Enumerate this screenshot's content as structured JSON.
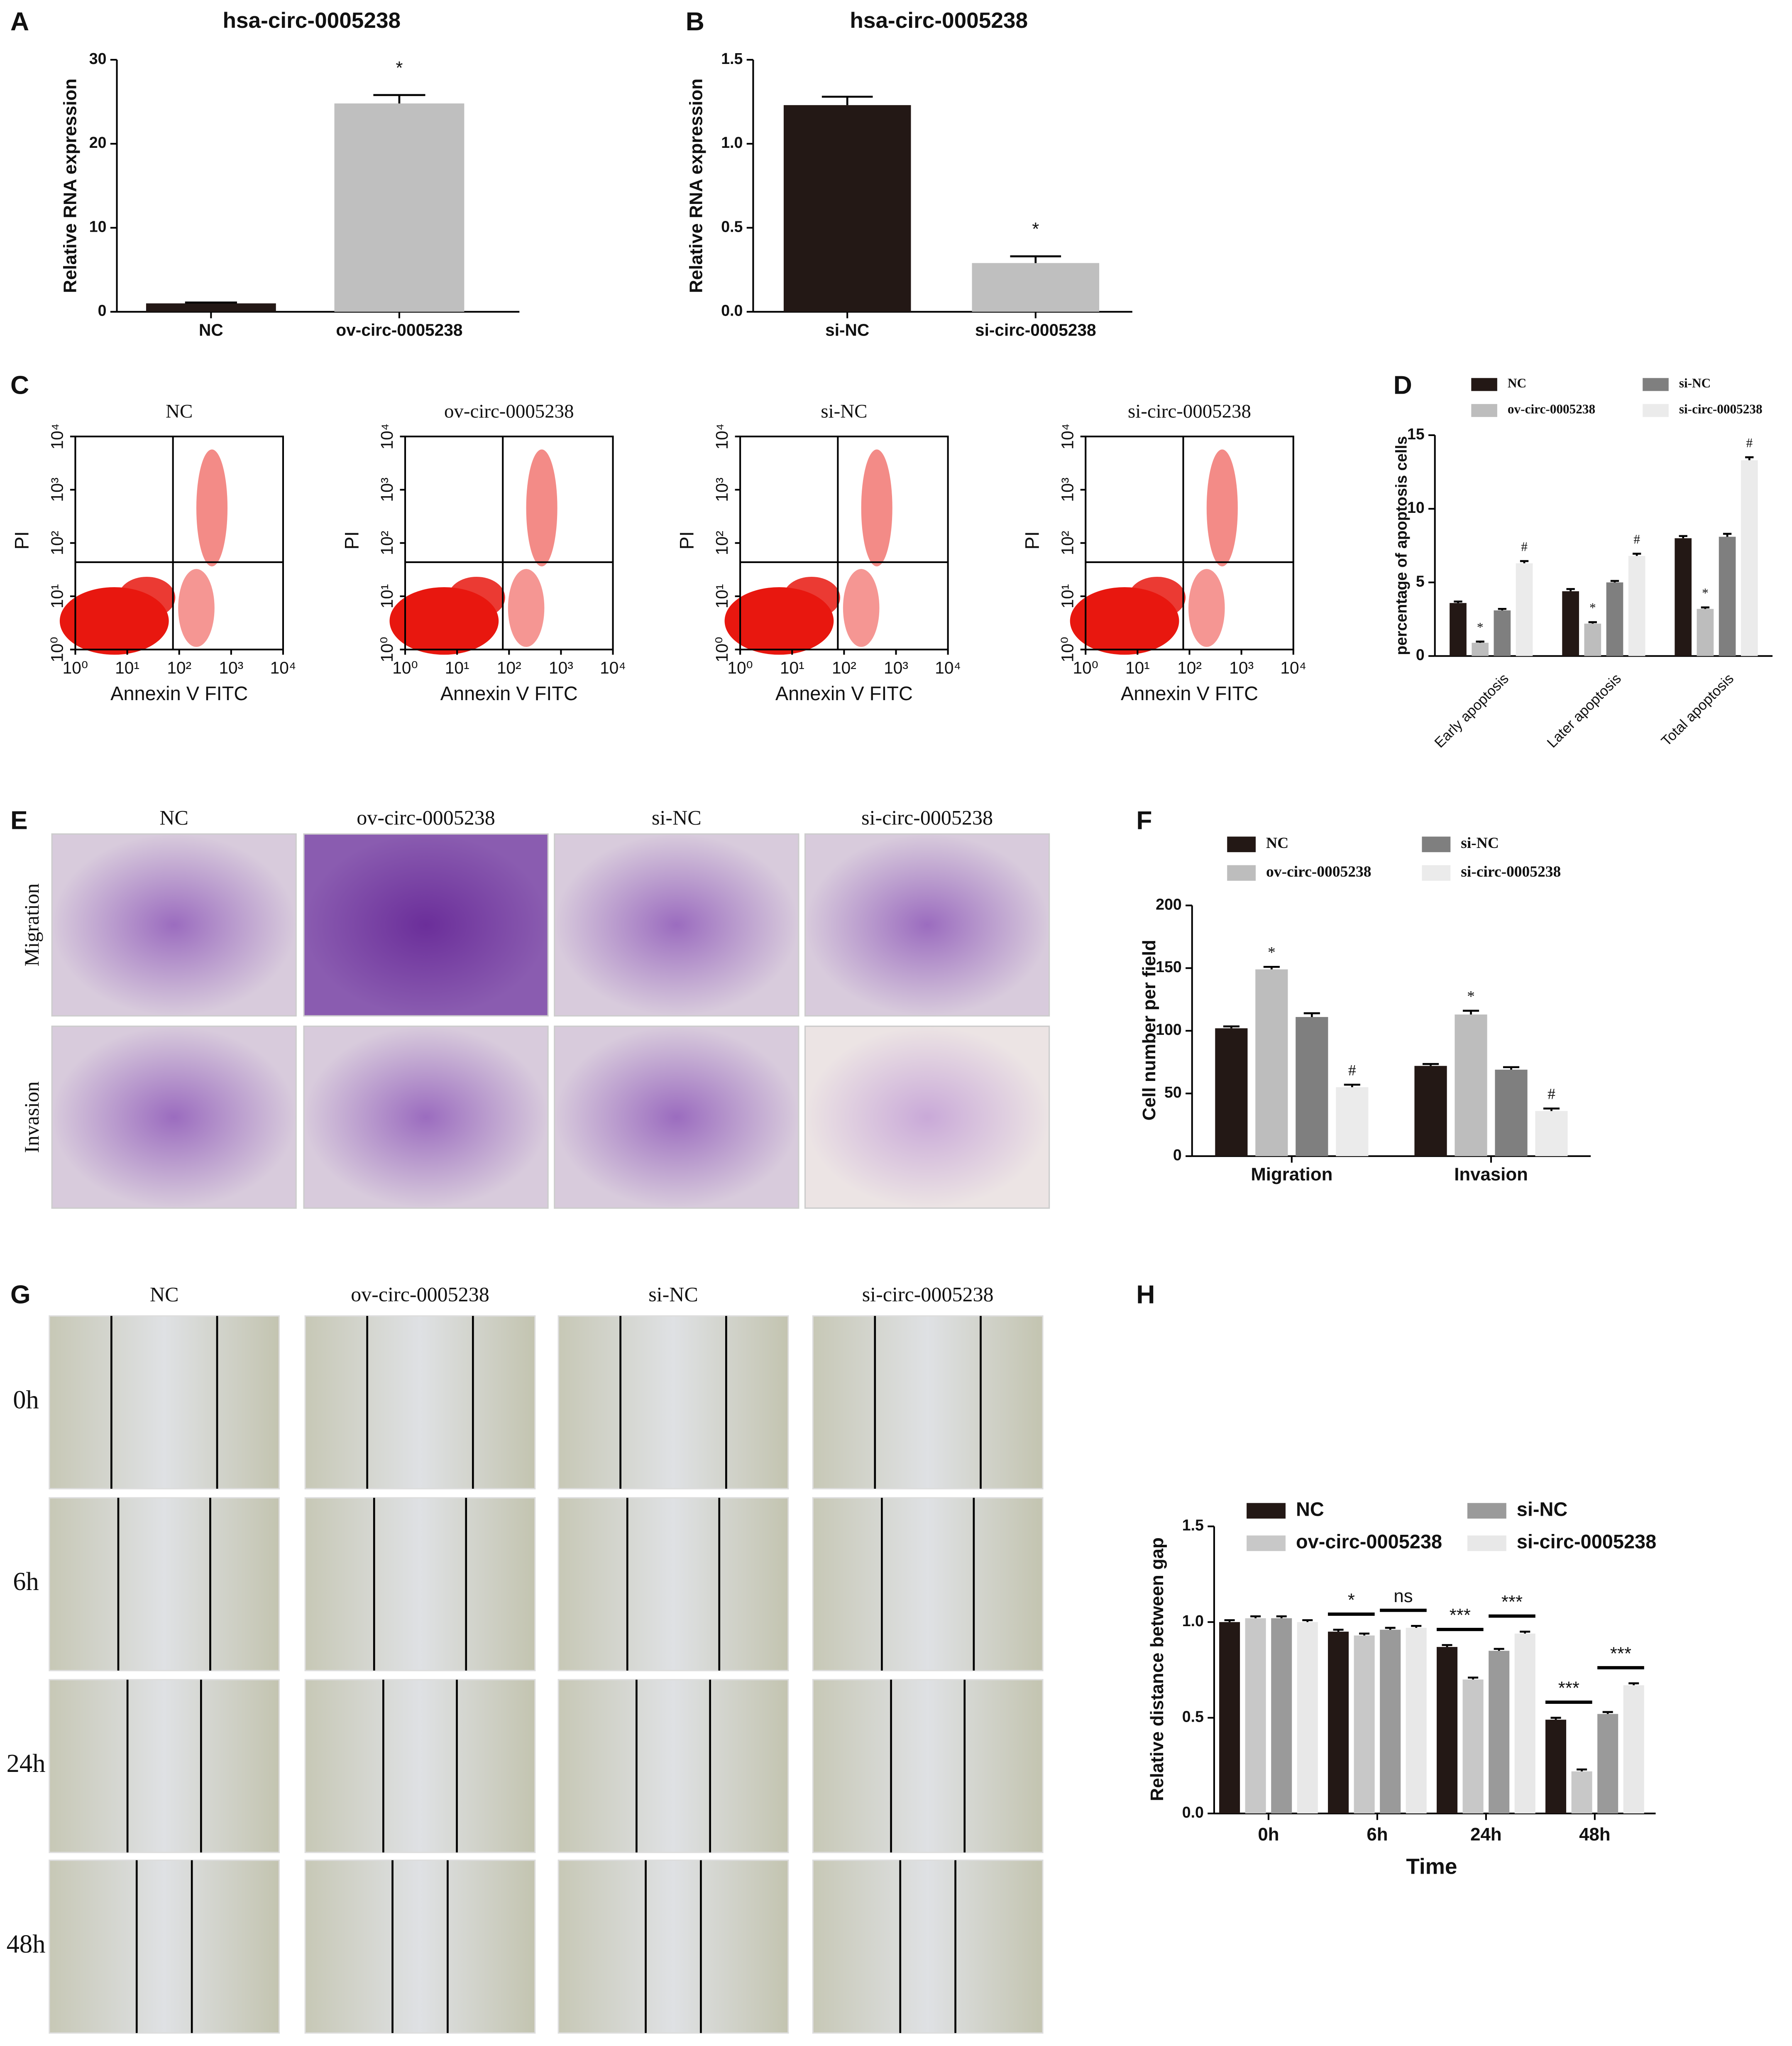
{
  "chart_data": [
    {
      "type": "bar",
      "panel": "A",
      "title": "hsa-circ-0005238",
      "y_label": "Relative RNA expression",
      "categories": [
        "NC",
        "ov-circ-0005238"
      ],
      "values": [
        1,
        24.8
      ],
      "errors": [
        0.1,
        1.0
      ],
      "colors": [
        "#231815",
        "#bfbfbf"
      ],
      "annotations": [
        null,
        "*"
      ],
      "ylim": [
        0,
        30
      ],
      "yticks": [
        0,
        10,
        20,
        30
      ]
    },
    {
      "type": "bar",
      "panel": "B",
      "title": "hsa-circ-0005238",
      "y_label": "Relative RNA expression",
      "categories": [
        "si-NC",
        "si-circ-0005238"
      ],
      "values": [
        1.23,
        0.29
      ],
      "errors": [
        0.05,
        0.04
      ],
      "colors": [
        "#231815",
        "#bfbfbf"
      ],
      "annotations": [
        null,
        "*"
      ],
      "ylim": [
        0,
        1.5
      ],
      "yticks": [
        {
          "value": 0,
          "label": "0.0"
        },
        {
          "value": 0.5,
          "label": "0.5"
        },
        {
          "value": 1,
          "label": "1.0"
        },
        {
          "value": 1.5,
          "label": "1.5"
        }
      ]
    },
    {
      "type": "flow",
      "panel": "C",
      "x_label": "Annexin V FITC",
      "y_label": "PI",
      "log": true,
      "plots": [
        "NC",
        "ov-circ-0005238",
        "si-NC",
        "si-circ-0005238"
      ],
      "color": "#e8170f",
      "xlim": [
        1,
        10000
      ],
      "ylim": [
        1,
        10000
      ],
      "xticks": [
        {
          "value": 1,
          "label": "10⁰"
        },
        {
          "value": 10,
          "label": "10¹"
        },
        {
          "value": 100,
          "label": "10²"
        },
        {
          "value": 1000,
          "label": "10³"
        },
        {
          "value": 10000,
          "label": "10⁴"
        }
      ],
      "yticks": [
        {
          "value": 1,
          "label": "10⁰"
        },
        {
          "value": 10,
          "label": "10¹"
        },
        {
          "value": 100,
          "label": "10²"
        },
        {
          "value": 1000,
          "label": "10³"
        },
        {
          "value": 10000,
          "label": "10⁴"
        }
      ]
    },
    {
      "type": "grouped-bar",
      "panel": "D",
      "y_label": "percentage of apoptosis cells",
      "categories": [
        "Early apoptosis",
        "Later apoptosis",
        "Total apoptosis"
      ],
      "series": [
        {
          "name": "NC",
          "color": "#231815",
          "values": [
            3.6,
            4.4,
            8.0
          ],
          "errors": [
            0.1,
            0.15,
            0.15
          ],
          "annotations": [
            null,
            null,
            null
          ]
        },
        {
          "name": "ov-circ-0005238",
          "color": "#bdbdbd",
          "values": [
            0.9,
            2.2,
            3.2
          ],
          "errors": [
            0.08,
            0.1,
            0.1
          ],
          "annotations": [
            "*",
            "*",
            "*"
          ]
        },
        {
          "name": "si-NC",
          "color": "#7f7f7f",
          "values": [
            3.1,
            5.0,
            8.1
          ],
          "errors": [
            0.1,
            0.1,
            0.2
          ],
          "annotations": [
            null,
            null,
            null
          ]
        },
        {
          "name": "si-circ-0005238",
          "color": "#ebebeb",
          "values": [
            6.3,
            6.8,
            13.3
          ],
          "errors": [
            0.15,
            0.15,
            0.2
          ],
          "annotations": [
            "#",
            "#",
            "#"
          ]
        }
      ],
      "ylim": [
        0,
        15
      ],
      "yticks": [
        0,
        5,
        10,
        15
      ]
    },
    {
      "type": "micrograph",
      "panel": "E",
      "columns": [
        "NC",
        "ov-circ-0005238",
        "si-NC",
        "si-circ-0005238"
      ],
      "rows": [
        "Migration",
        "Invasion"
      ]
    },
    {
      "type": "grouped-bar",
      "panel": "F",
      "y_label": "Cell number per field",
      "categories": [
        "Migration",
        "Invasion"
      ],
      "series": [
        {
          "name": "NC",
          "color": "#231815",
          "values": [
            102,
            72
          ],
          "errors": [
            1.5,
            1.5
          ],
          "annotations": [
            null,
            null
          ]
        },
        {
          "name": "ov-circ-0005238",
          "color": "#bdbdbd",
          "values": [
            149,
            113
          ],
          "errors": [
            2,
            3
          ],
          "annotations": [
            "*",
            "*"
          ]
        },
        {
          "name": "si-NC",
          "color": "#7f7f7f",
          "values": [
            111,
            69
          ],
          "errors": [
            3,
            2
          ],
          "annotations": [
            null,
            null
          ]
        },
        {
          "name": "si-circ-0005238",
          "color": "#ebebeb",
          "values": [
            55,
            36
          ],
          "errors": [
            2,
            2
          ],
          "annotations": [
            "#",
            "#"
          ]
        }
      ],
      "ylim": [
        0,
        200
      ],
      "yticks": [
        0,
        50,
        100,
        150,
        200
      ]
    },
    {
      "type": "micrograph",
      "panel": "G",
      "columns": [
        "NC",
        "ov-circ-0005238",
        "si-NC",
        "si-circ-0005238"
      ],
      "rows": [
        "0h",
        "6h",
        "24h",
        "48h"
      ]
    },
    {
      "type": "grouped-bar",
      "panel": "H",
      "y_label": "Relative distance between gap",
      "x_label": "Time",
      "categories": [
        "0h",
        "6h",
        "24h",
        "48h"
      ],
      "series": [
        {
          "name": "NC",
          "color": "#231815",
          "values": [
            1.0,
            0.95,
            0.87,
            0.49
          ],
          "errors": [
            0.01,
            0.01,
            0.01,
            0.01
          ]
        },
        {
          "name": "ov-circ-0005238",
          "color": "#c8c8c8",
          "values": [
            1.02,
            0.93,
            0.7,
            0.22
          ],
          "errors": [
            0.01,
            0.01,
            0.01,
            0.01
          ]
        },
        {
          "name": "si-NC",
          "color": "#9a9a9a",
          "values": [
            1.02,
            0.96,
            0.85,
            0.52
          ],
          "errors": [
            0.01,
            0.01,
            0.01,
            0.01
          ]
        },
        {
          "name": "si-circ-0005238",
          "color": "#e8e8e8",
          "values": [
            1.0,
            0.97,
            0.94,
            0.67
          ],
          "errors": [
            0.01,
            0.01,
            0.01,
            0.01
          ]
        }
      ],
      "brackets": [
        null,
        [
          "*",
          "ns"
        ],
        [
          "***",
          "***"
        ],
        [
          "***",
          "***"
        ]
      ],
      "ylim": [
        0,
        1.5
      ],
      "yticks": [
        {
          "value": 0,
          "label": "0.0"
        },
        {
          "value": 0.5,
          "label": "0.5"
        },
        {
          "value": 1,
          "label": "1.0"
        },
        {
          "value": 1.5,
          "label": "1.5"
        }
      ]
    }
  ]
}
